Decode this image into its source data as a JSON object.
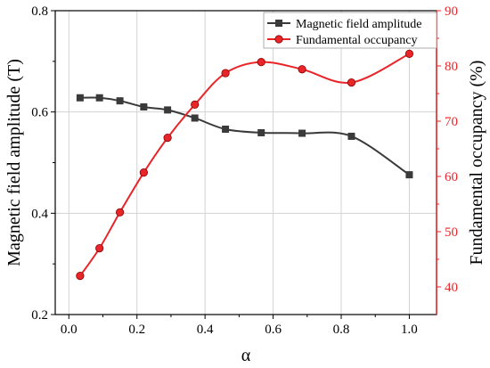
{
  "chart_data": {
    "type": "line",
    "xlabel": "α",
    "ylabel_left": "Magnetic field amplitude (T)",
    "ylabel_right": "Fundamental occupancy (%)",
    "xlim": [
      -0.04,
      1.08
    ],
    "ylim_left": [
      0.2,
      0.8
    ],
    "ylim_right": [
      35,
      90
    ],
    "x_ticks": [
      "0.0",
      "0.2",
      "0.4",
      "0.6",
      "0.8",
      "1.0"
    ],
    "x_tick_values": [
      0.0,
      0.2,
      0.4,
      0.6,
      0.8,
      1.0
    ],
    "y_left_ticks": [
      "0.2",
      "0.4",
      "0.6",
      "0.8"
    ],
    "y_left_tick_values": [
      0.2,
      0.4,
      0.6,
      0.8
    ],
    "y_right_ticks": [
      "40",
      "50",
      "60",
      "70",
      "80",
      "90"
    ],
    "y_right_tick_values": [
      40,
      50,
      60,
      70,
      80,
      90
    ],
    "grid": true,
    "legend_position": "top-right",
    "series": [
      {
        "name": "Magnetic field amplitude",
        "axis": "left",
        "color": "#3a3a3a",
        "marker": "square",
        "x": [
          0.033,
          0.09,
          0.15,
          0.22,
          0.29,
          0.37,
          0.46,
          0.565,
          0.685,
          0.83,
          1.0
        ],
        "y": [
          0.628,
          0.628,
          0.622,
          0.61,
          0.604,
          0.588,
          0.566,
          0.559,
          0.558,
          0.552,
          0.476
        ]
      },
      {
        "name": "Fundamental occupancy",
        "axis": "right",
        "color": "#e8262a",
        "marker": "circle",
        "x": [
          0.033,
          0.09,
          0.15,
          0.22,
          0.29,
          0.37,
          0.46,
          0.565,
          0.685,
          0.83,
          1.0
        ],
        "y": [
          42.0,
          47.0,
          53.5,
          60.7,
          67.0,
          73.0,
          78.7,
          80.7,
          79.4,
          77.0,
          82.2
        ]
      }
    ]
  }
}
